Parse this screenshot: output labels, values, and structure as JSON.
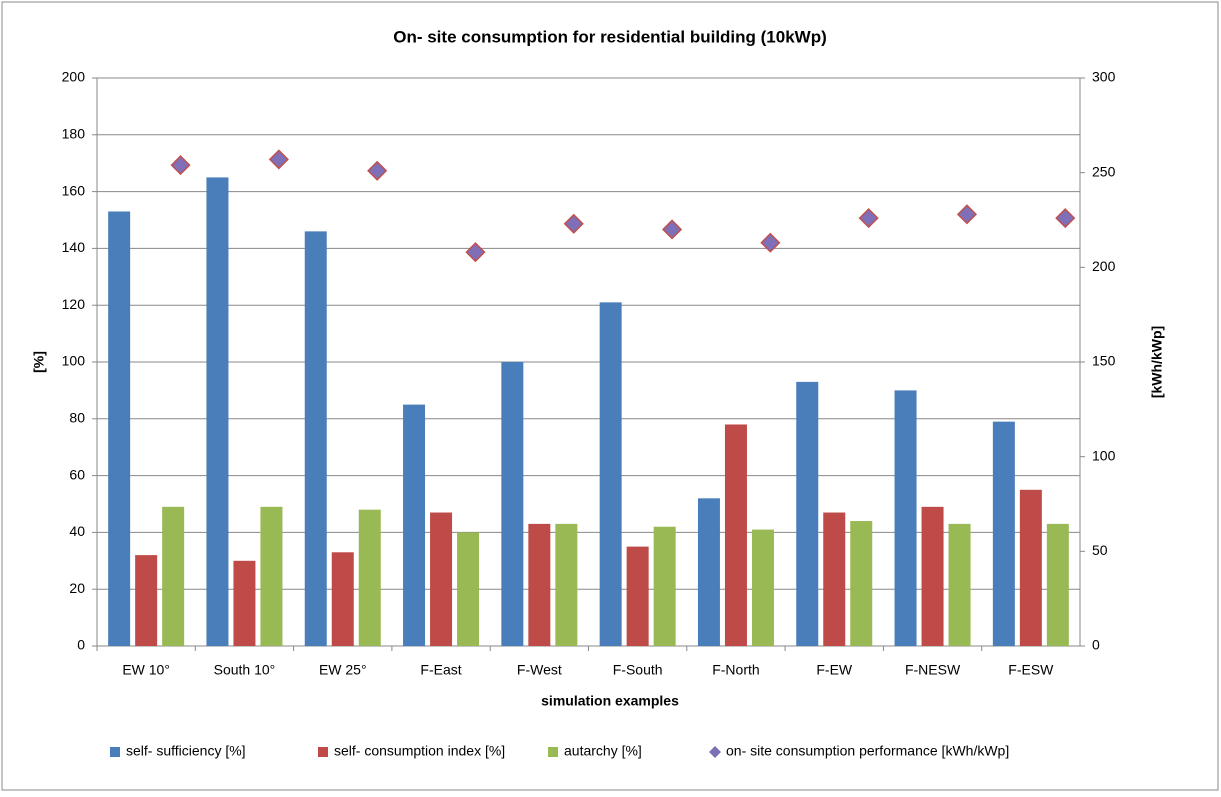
{
  "chart_data": {
    "type": "bar",
    "title": "On- site consumption for residential building (10kWp)",
    "x_label": "simulation examples",
    "y_label": "[%]",
    "y2_label": "[kWh/kWp]",
    "categories": [
      "EW 10°",
      "South 10°",
      "EW 25°",
      "F-East",
      "F-West",
      "F-South",
      "F-North",
      "F-EW",
      "F-NESW",
      "F-ESW"
    ],
    "series": [
      {
        "name": "self- sufficiency  [%]",
        "color": "#4a7ebb",
        "type": "bar",
        "values": [
          153,
          165,
          146,
          85,
          100,
          121,
          52,
          93,
          90,
          79
        ]
      },
      {
        "name": "self- consumption index [%]",
        "color": "#be4b48",
        "type": "bar",
        "values": [
          32,
          30,
          33,
          47,
          43,
          35,
          78,
          47,
          49,
          55
        ]
      },
      {
        "name": "autarchy [%]",
        "color": "#98b954",
        "type": "bar",
        "values": [
          49,
          49,
          48,
          40,
          43,
          42,
          41,
          44,
          43,
          43
        ]
      },
      {
        "name": "on- site consumption performance [kWh/kWp]",
        "color": "#7e6fb8",
        "type": "scatter",
        "axis": "y2",
        "values": [
          254,
          257,
          251,
          208,
          223,
          220,
          213,
          226,
          228,
          226
        ]
      }
    ],
    "ylim": [
      0,
      200
    ],
    "yticks": [
      0,
      20,
      40,
      60,
      80,
      100,
      120,
      140,
      160,
      180,
      200
    ],
    "y2lim": [
      0,
      300
    ],
    "y2ticks": [
      0,
      50,
      100,
      150,
      200,
      250,
      300
    ],
    "grid": true,
    "legend": "bottom"
  }
}
